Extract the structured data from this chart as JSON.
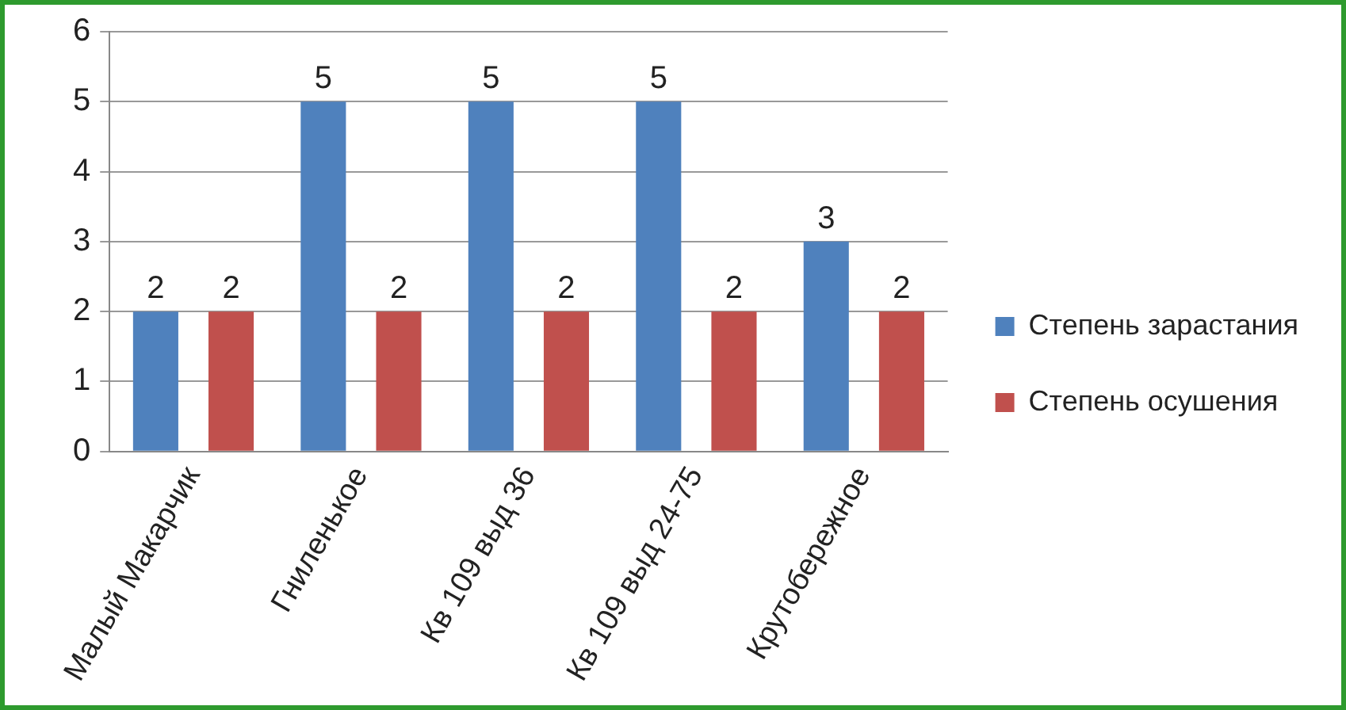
{
  "chart_data": {
    "type": "bar",
    "categories": [
      "Малый Макарчик",
      "Гниленькое",
      "Кв 109 выд 36",
      "Кв 109 выд 24-75",
      "Крутобережное"
    ],
    "series": [
      {
        "name": "Степень зарастания",
        "color": "#4f81bd",
        "values": [
          2,
          5,
          5,
          5,
          3
        ]
      },
      {
        "name": "Степень осушения",
        "color": "#c0504d",
        "values": [
          2,
          2,
          2,
          2,
          2
        ]
      }
    ],
    "ylim": [
      0,
      6
    ],
    "yticks": [
      0,
      1,
      2,
      3,
      4,
      5,
      6
    ],
    "grid": "y",
    "legend": "right",
    "data_labels": true
  }
}
